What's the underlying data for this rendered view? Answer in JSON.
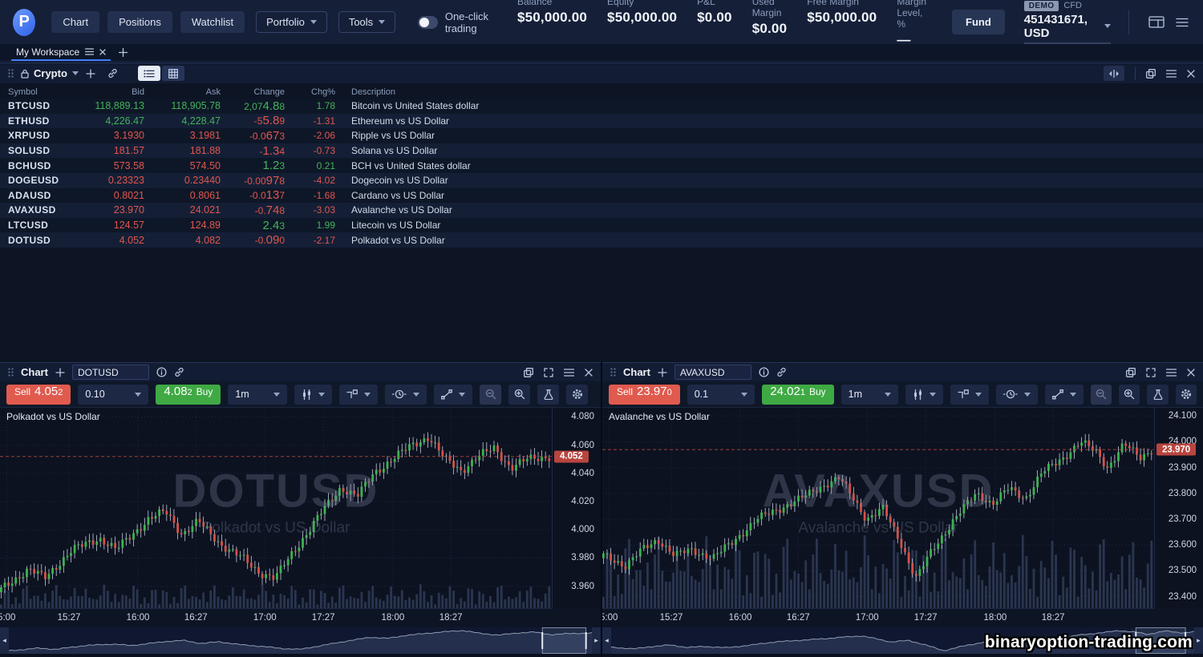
{
  "topbar": {
    "logo_letter": "P",
    "nav": [
      "Chart",
      "Positions",
      "Watchlist"
    ],
    "dropdowns": [
      "Portfolio",
      "Tools"
    ],
    "one_click_label": "One-click trading",
    "stats": [
      {
        "label": "Balance",
        "value": "$50,000.00"
      },
      {
        "label": "Equity",
        "value": "$50,000.00"
      },
      {
        "label": "P&L",
        "value": "$0.00"
      },
      {
        "label": "Used Margin",
        "value": "$0.00"
      },
      {
        "label": "Free Margin",
        "value": "$50,000.00"
      },
      {
        "label": "Margin Level, %",
        "value": "—"
      }
    ],
    "fund_label": "Fund",
    "account": {
      "badge": "DEMO",
      "type": "CFD",
      "number": "451431671, USD"
    }
  },
  "workspace": {
    "label": "My Workspace"
  },
  "watchlist": {
    "title": "Crypto",
    "columns": [
      "Symbol",
      "Bid",
      "Ask",
      "Change",
      "Chg%",
      "Description"
    ],
    "rows": [
      {
        "sym": "BTCUSD",
        "bid": "118,889.13",
        "ask": "118,905.78",
        "chg": "2,074.88",
        "pct": "1.78",
        "desc": "Bitcoin vs United States dollar",
        "q": "up",
        "d": "up"
      },
      {
        "sym": "ETHUSD",
        "bid": "4,226.47",
        "ask": "4,228.47",
        "chg": "-55.89",
        "pct": "-1.31",
        "desc": "Ethereum vs US Dollar",
        "q": "up",
        "d": "down"
      },
      {
        "sym": "XRPUSD",
        "bid": "3.1930",
        "ask": "3.1981",
        "chg": "-0.0673",
        "pct": "-2.06",
        "desc": "Ripple vs US Dollar",
        "q": "down",
        "d": "down"
      },
      {
        "sym": "SOLUSD",
        "bid": "181.57",
        "ask": "181.88",
        "chg": "-1.34",
        "pct": "-0.73",
        "desc": "Solana vs US Dollar",
        "q": "down",
        "d": "down"
      },
      {
        "sym": "BCHUSD",
        "bid": "573.58",
        "ask": "574.50",
        "chg": "1.23",
        "pct": "0.21",
        "desc": "BCH vs United States dollar",
        "q": "down",
        "d": "up"
      },
      {
        "sym": "DOGEUSD",
        "bid": "0.23323",
        "ask": "0.23440",
        "chg": "-0.00978",
        "pct": "-4.02",
        "desc": "Dogecoin vs US Dollar",
        "q": "down",
        "d": "down"
      },
      {
        "sym": "ADAUSD",
        "bid": "0.8021",
        "ask": "0.8061",
        "chg": "-0.0137",
        "pct": "-1.68",
        "desc": "Cardano vs US Dollar",
        "q": "down",
        "d": "down"
      },
      {
        "sym": "AVAXUSD",
        "bid": "23.970",
        "ask": "24.021",
        "chg": "-0.748",
        "pct": "-3.03",
        "desc": "Avalanche vs US Dollar",
        "q": "down",
        "d": "down"
      },
      {
        "sym": "LTCUSD",
        "bid": "124.57",
        "ask": "124.89",
        "chg": "2.43",
        "pct": "1.99",
        "desc": "Litecoin vs US Dollar",
        "q": "down",
        "d": "up"
      },
      {
        "sym": "DOTUSD",
        "bid": "4.052",
        "ask": "4.082",
        "chg": "-0.090",
        "pct": "-2.17",
        "desc": "Polkadot vs US Dollar",
        "q": "down",
        "d": "down"
      }
    ]
  },
  "charts": [
    {
      "tab": "Chart",
      "symbol": "DOTUSD",
      "title": "Polkadot vs US Dollar",
      "sell_label": "Sell",
      "sell_price": "4.052",
      "qty": "0.10",
      "buy_price": "4.082",
      "buy_label": "Buy",
      "timeframe": "1m",
      "watermark_big": "DOTUSD",
      "watermark_small": "Polkadot vs US Dollar",
      "last_price": "4.052",
      "price_top": 4.0865,
      "price_bottom": 3.9445,
      "ticks": [
        "4.080",
        "4.060",
        "4.040",
        "4.020",
        "4.000",
        "3.980",
        "3.960"
      ],
      "times": [
        {
          "t": "5:00",
          "f": 0.012
        },
        {
          "t": "15:27",
          "f": 0.125
        },
        {
          "t": "16:00",
          "f": 0.25
        },
        {
          "t": "16:27",
          "f": 0.355
        },
        {
          "t": "17:00",
          "f": 0.48
        },
        {
          "t": "17:27",
          "f": 0.586
        },
        {
          "t": "18:00",
          "f": 0.712
        },
        {
          "t": "18:27",
          "f": 0.817
        }
      ],
      "keypoints": [
        [
          0,
          3.958
        ],
        [
          0.05,
          3.972
        ],
        [
          0.08,
          3.966
        ],
        [
          0.13,
          3.986
        ],
        [
          0.18,
          3.994
        ],
        [
          0.21,
          3.986
        ],
        [
          0.27,
          4.008
        ],
        [
          0.3,
          4.013
        ],
        [
          0.33,
          3.997
        ],
        [
          0.36,
          4.006
        ],
        [
          0.4,
          3.99
        ],
        [
          0.44,
          3.98
        ],
        [
          0.47,
          3.97
        ],
        [
          0.5,
          3.966
        ],
        [
          0.54,
          3.988
        ],
        [
          0.58,
          4.01
        ],
        [
          0.62,
          4.03
        ],
        [
          0.65,
          4.024
        ],
        [
          0.68,
          4.04
        ],
        [
          0.72,
          4.052
        ],
        [
          0.75,
          4.06
        ],
        [
          0.78,
          4.066
        ],
        [
          0.81,
          4.05
        ],
        [
          0.84,
          4.042
        ],
        [
          0.87,
          4.052
        ],
        [
          0.9,
          4.058
        ],
        [
          0.93,
          4.044
        ],
        [
          0.96,
          4.05
        ],
        [
          1,
          4.052
        ]
      ],
      "candles": 150,
      "wiggle": 0.0035,
      "vol_max": 30,
      "nav_sel": [
        0.915,
        0.99
      ]
    },
    {
      "tab": "Chart",
      "symbol": "AVAXUSD",
      "title": "Avalanche vs US Dollar",
      "sell_label": "Sell",
      "sell_price": "23.970",
      "qty": "0.1",
      "buy_price": "24.021",
      "buy_label": "Buy",
      "timeframe": "1m",
      "watermark_big": "AVAXUSD",
      "watermark_small": "Avalanche vs US Dollar",
      "last_price": "23.970",
      "price_top": 24.132,
      "price_bottom": 23.355,
      "ticks": [
        "24.100",
        "24.000",
        "23.900",
        "23.800",
        "23.700",
        "23.600",
        "23.500",
        "23.400"
      ],
      "times": [
        {
          "t": "5:00",
          "f": 0.012
        },
        {
          "t": "15:27",
          "f": 0.125
        },
        {
          "t": "16:00",
          "f": 0.25
        },
        {
          "t": "16:27",
          "f": 0.355
        },
        {
          "t": "17:00",
          "f": 0.48
        },
        {
          "t": "17:27",
          "f": 0.586
        },
        {
          "t": "18:00",
          "f": 0.712
        },
        {
          "t": "18:27",
          "f": 0.817
        }
      ],
      "keypoints": [
        [
          0,
          23.56
        ],
        [
          0.04,
          23.52
        ],
        [
          0.07,
          23.58
        ],
        [
          0.1,
          23.62
        ],
        [
          0.13,
          23.56
        ],
        [
          0.16,
          23.58
        ],
        [
          0.2,
          23.55
        ],
        [
          0.24,
          23.62
        ],
        [
          0.28,
          23.7
        ],
        [
          0.32,
          23.74
        ],
        [
          0.36,
          23.78
        ],
        [
          0.4,
          23.83
        ],
        [
          0.43,
          23.86
        ],
        [
          0.45,
          23.8
        ],
        [
          0.48,
          23.7
        ],
        [
          0.51,
          23.74
        ],
        [
          0.54,
          23.62
        ],
        [
          0.57,
          23.47
        ],
        [
          0.6,
          23.58
        ],
        [
          0.64,
          23.7
        ],
        [
          0.68,
          23.8
        ],
        [
          0.71,
          23.76
        ],
        [
          0.74,
          23.82
        ],
        [
          0.77,
          23.78
        ],
        [
          0.8,
          23.88
        ],
        [
          0.84,
          23.94
        ],
        [
          0.87,
          24.0
        ],
        [
          0.9,
          23.96
        ],
        [
          0.92,
          23.9
        ],
        [
          0.95,
          23.99
        ],
        [
          0.98,
          23.94
        ],
        [
          1,
          23.97
        ]
      ],
      "candles": 150,
      "wiggle": 0.018,
      "vol_max": 92,
      "nav_sel": [
        0.9,
        0.985
      ]
    }
  ],
  "site_watermark": "binaryoption-trading.com",
  "colors": {
    "accent": "#3e7bfa",
    "up": "#3cb34f",
    "down": "#d4514a",
    "sell": "#e05a4e",
    "buy": "#3fa944",
    "price_tag": "#b9453e"
  }
}
